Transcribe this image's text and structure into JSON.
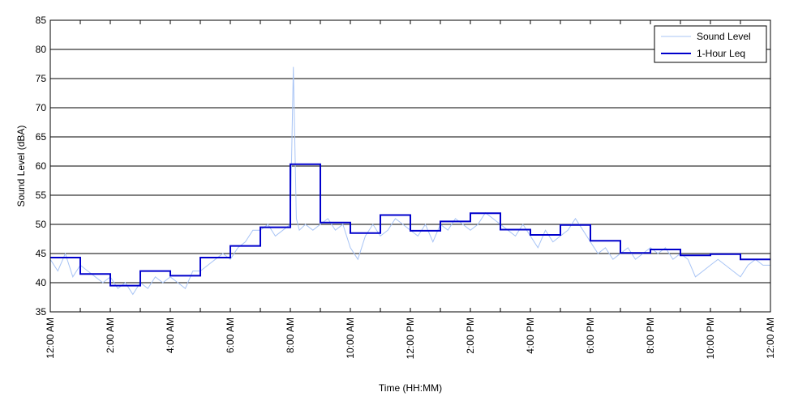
{
  "chart_data": {
    "type": "line",
    "title": "",
    "xlabel": "Time (HH:MM)",
    "ylabel": "Sound Level (dBA)",
    "xlim": [
      0,
      24
    ],
    "ylim": [
      35,
      85
    ],
    "yticks": [
      "35",
      "40",
      "45",
      "50",
      "55",
      "60",
      "65",
      "70",
      "75",
      "80",
      "85"
    ],
    "xticks": [
      {
        "value": 0,
        "label": "12:00 AM"
      },
      {
        "value": 2,
        "label": "2:00 AM"
      },
      {
        "value": 4,
        "label": "4:00 AM"
      },
      {
        "value": 6,
        "label": "6:00 AM"
      },
      {
        "value": 8,
        "label": "8:00 AM"
      },
      {
        "value": 10,
        "label": "10:00 AM"
      },
      {
        "value": 12,
        "label": "12:00 PM"
      },
      {
        "value": 14,
        "label": "2:00 PM"
      },
      {
        "value": 16,
        "label": "4:00 PM"
      },
      {
        "value": 18,
        "label": "6:00 PM"
      },
      {
        "value": 20,
        "label": "8:00 PM"
      },
      {
        "value": 22,
        "label": "10:00 PM"
      },
      {
        "value": 24,
        "label": "12:00 AM"
      }
    ],
    "grid": "horizontal",
    "legend_position": "top-right",
    "series": [
      {
        "name": "Sound Level",
        "color": "#a8c4f5",
        "x": [
          0,
          0.25,
          0.5,
          0.75,
          1,
          1.25,
          1.5,
          1.75,
          2,
          2.25,
          2.5,
          2.75,
          3,
          3.25,
          3.5,
          3.75,
          4,
          4.25,
          4.5,
          4.75,
          5,
          5.25,
          5.5,
          5.75,
          6,
          6.25,
          6.5,
          6.75,
          7,
          7.25,
          7.5,
          7.75,
          8,
          8.1,
          8.2,
          8.3,
          8.5,
          8.75,
          9,
          9.25,
          9.5,
          9.75,
          10,
          10.25,
          10.5,
          10.75,
          11,
          11.25,
          11.5,
          11.75,
          12,
          12.25,
          12.5,
          12.75,
          13,
          13.25,
          13.5,
          13.75,
          14,
          14.25,
          14.5,
          14.75,
          15,
          15.25,
          15.5,
          15.75,
          16,
          16.25,
          16.5,
          16.75,
          17,
          17.25,
          17.5,
          17.75,
          18,
          18.25,
          18.5,
          18.75,
          19,
          19.25,
          19.5,
          19.75,
          20,
          20.25,
          20.5,
          20.75,
          21,
          21.25,
          21.5,
          21.75,
          22,
          22.25,
          22.5,
          22.75,
          23,
          23.25,
          23.5,
          23.75,
          24
        ],
        "values": [
          44,
          42,
          45,
          41,
          43,
          42,
          41,
          40,
          41,
          39,
          40,
          38,
          40,
          39,
          41,
          40,
          41,
          40,
          39,
          42,
          42,
          43,
          44,
          45,
          44,
          46,
          47,
          49,
          49,
          50,
          48,
          49,
          50,
          77,
          51,
          49,
          50,
          49,
          50,
          51,
          49,
          50,
          46,
          44,
          48,
          50,
          48,
          49,
          51,
          50,
          49,
          48,
          50,
          47,
          50,
          49,
          51,
          50,
          49,
          50,
          52,
          51,
          50,
          49,
          48,
          50,
          48,
          46,
          49,
          47,
          48,
          49,
          51,
          49,
          47,
          45,
          46,
          44,
          45,
          46,
          44,
          45,
          46,
          45,
          46,
          44,
          45,
          44,
          41,
          42,
          43,
          44,
          43,
          42,
          41,
          43,
          44,
          43,
          43
        ]
      },
      {
        "name": "1-Hour Leq",
        "color": "#0000cc",
        "step_start": [
          0,
          1,
          2,
          3,
          4,
          5,
          6,
          7,
          8,
          9,
          10,
          11,
          12,
          13,
          14,
          15,
          16,
          17,
          18,
          19,
          20,
          21,
          22,
          23
        ],
        "values": [
          44.3,
          41.5,
          39.5,
          42.0,
          41.2,
          44.3,
          46.3,
          49.5,
          60.3,
          50.3,
          48.5,
          51.6,
          48.9,
          50.5,
          51.9,
          49.1,
          48.2,
          49.9,
          47.2,
          45.1,
          45.7,
          44.7,
          44.9,
          44.0
        ]
      }
    ]
  }
}
